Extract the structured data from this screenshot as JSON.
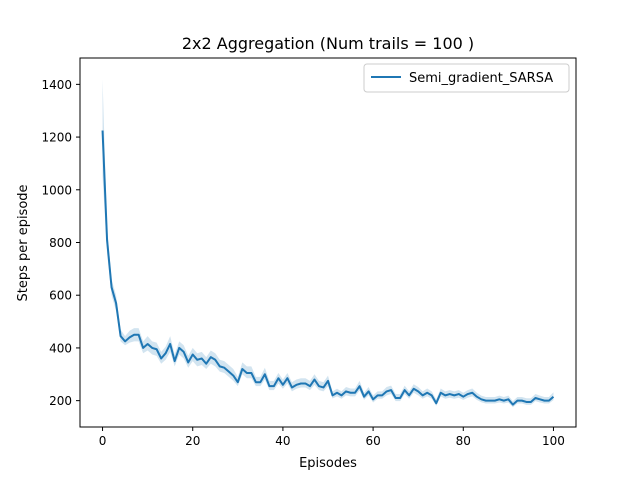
{
  "chart_data": {
    "type": "line",
    "title": "2x2 Aggregation (Num trails = 100 )",
    "xlabel": "Episodes",
    "ylabel": "Steps per episode",
    "xlim": [
      -5,
      105
    ],
    "ylim": [
      100,
      1500
    ],
    "xticks": [
      0,
      20,
      40,
      60,
      80,
      100
    ],
    "yticks": [
      200,
      400,
      600,
      800,
      1000,
      1200,
      1400
    ],
    "grid": false,
    "legend_position": "top-right",
    "series": [
      {
        "name": "Semi_gradient_SARSA",
        "color": "#1f77b4",
        "band_color": "#1f77b4",
        "x": [
          0,
          1,
          2,
          3,
          4,
          5,
          6,
          7,
          8,
          9,
          10,
          11,
          12,
          13,
          14,
          15,
          16,
          17,
          18,
          19,
          20,
          21,
          22,
          23,
          24,
          25,
          26,
          27,
          28,
          29,
          30,
          31,
          32,
          33,
          34,
          35,
          36,
          37,
          38,
          39,
          40,
          41,
          42,
          43,
          44,
          45,
          46,
          47,
          48,
          49,
          50,
          51,
          52,
          53,
          54,
          55,
          56,
          57,
          58,
          59,
          60,
          61,
          62,
          63,
          64,
          65,
          66,
          67,
          68,
          69,
          70,
          71,
          72,
          73,
          74,
          75,
          76,
          77,
          78,
          79,
          80,
          81,
          82,
          83,
          84,
          85,
          86,
          87,
          88,
          89,
          90,
          91,
          92,
          93,
          94,
          95,
          96,
          97,
          98,
          99,
          100
        ],
        "y": [
          1225,
          810,
          630,
          570,
          445,
          425,
          440,
          450,
          450,
          400,
          415,
          400,
          395,
          360,
          380,
          415,
          350,
          400,
          385,
          345,
          375,
          355,
          360,
          340,
          365,
          355,
          330,
          325,
          310,
          295,
          270,
          320,
          305,
          305,
          270,
          270,
          300,
          255,
          255,
          285,
          260,
          285,
          250,
          260,
          265,
          265,
          255,
          280,
          255,
          250,
          275,
          220,
          230,
          220,
          235,
          230,
          230,
          255,
          215,
          235,
          205,
          220,
          220,
          235,
          240,
          210,
          210,
          240,
          220,
          245,
          235,
          220,
          230,
          220,
          190,
          230,
          220,
          225,
          220,
          225,
          215,
          225,
          230,
          215,
          205,
          200,
          200,
          200,
          205,
          200,
          205,
          185,
          200,
          200,
          195,
          195,
          210,
          205,
          200,
          200,
          215
        ],
        "band_low": [
          1050,
          760,
          600,
          540,
          425,
          410,
          420,
          425,
          425,
          380,
          390,
          375,
          370,
          340,
          355,
          385,
          330,
          375,
          360,
          325,
          350,
          330,
          335,
          320,
          340,
          330,
          310,
          305,
          290,
          275,
          255,
          300,
          285,
          285,
          255,
          255,
          280,
          240,
          240,
          265,
          245,
          265,
          235,
          245,
          250,
          250,
          240,
          260,
          240,
          235,
          255,
          208,
          216,
          207,
          220,
          216,
          216,
          238,
          203,
          220,
          193,
          207,
          207,
          220,
          225,
          198,
          198,
          225,
          207,
          230,
          220,
          207,
          216,
          207,
          180,
          216,
          207,
          211,
          207,
          211,
          203,
          211,
          216,
          203,
          194,
          189,
          189,
          189,
          193,
          189,
          193,
          175,
          189,
          189,
          184,
          184,
          198,
          193,
          189,
          189,
          202
        ],
        "band_high": [
          1420,
          860,
          660,
          600,
          470,
          445,
          465,
          475,
          475,
          425,
          445,
          425,
          420,
          385,
          405,
          445,
          375,
          425,
          410,
          370,
          400,
          380,
          385,
          365,
          390,
          380,
          355,
          350,
          335,
          320,
          290,
          345,
          330,
          330,
          290,
          290,
          325,
          275,
          275,
          305,
          280,
          305,
          270,
          280,
          285,
          285,
          275,
          300,
          275,
          270,
          295,
          235,
          245,
          235,
          252,
          246,
          246,
          275,
          230,
          252,
          220,
          235,
          235,
          252,
          257,
          225,
          225,
          257,
          235,
          262,
          252,
          235,
          246,
          235,
          205,
          246,
          235,
          240,
          235,
          240,
          230,
          240,
          246,
          230,
          219,
          214,
          214,
          214,
          219,
          214,
          219,
          198,
          214,
          214,
          209,
          209,
          225,
          219,
          214,
          214,
          232
        ]
      }
    ]
  }
}
